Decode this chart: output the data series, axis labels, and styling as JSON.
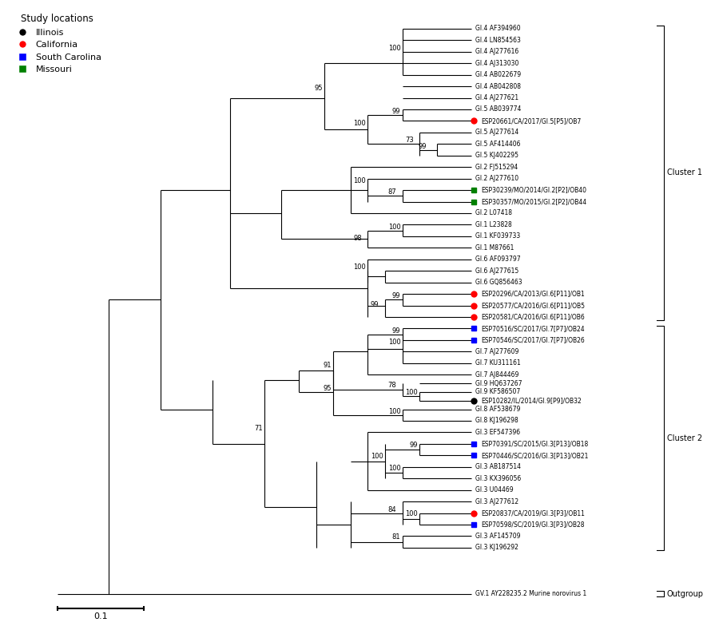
{
  "legend_title": "Study locations",
  "legend_items": [
    {
      "label": "Illinois",
      "color": "black",
      "marker": "o"
    },
    {
      "label": "California",
      "color": "red",
      "marker": "o"
    },
    {
      "label": "South Carolina",
      "color": "blue",
      "marker": "s"
    },
    {
      "label": "Missouri",
      "color": "green",
      "marker": "s"
    }
  ],
  "taxa": [
    {
      "name": "GI.4 AF394960",
      "color": null,
      "marker": null,
      "y": 68
    },
    {
      "name": "GI.4 LN854563",
      "color": null,
      "marker": null,
      "y": 66
    },
    {
      "name": "GI.4 AJ277616",
      "color": null,
      "marker": null,
      "y": 64
    },
    {
      "name": "GI.4 AJ313030",
      "color": null,
      "marker": null,
      "y": 62
    },
    {
      "name": "GI.4 AB022679",
      "color": null,
      "marker": null,
      "y": 60
    },
    {
      "name": "GI.4 AB042808",
      "color": null,
      "marker": null,
      "y": 58
    },
    {
      "name": "GI.4 AJ277621",
      "color": null,
      "marker": null,
      "y": 56
    },
    {
      "name": "GI.5 AB039774",
      "color": null,
      "marker": null,
      "y": 54
    },
    {
      "name": "ESP20661/CA/2017/GI.5[P5]/OB7",
      "color": "red",
      "marker": "o",
      "y": 52
    },
    {
      "name": "GI.5 AJ277614",
      "color": null,
      "marker": null,
      "y": 50
    },
    {
      "name": "GI.5 AF414406",
      "color": null,
      "marker": null,
      "y": 48
    },
    {
      "name": "GI.5 KJ402295",
      "color": null,
      "marker": null,
      "y": 46
    },
    {
      "name": "GI.2 FJ515294",
      "color": null,
      "marker": null,
      "y": 44
    },
    {
      "name": "GI.2 AJ277610",
      "color": null,
      "marker": null,
      "y": 42
    },
    {
      "name": "ESP30239/MO/2014/GI.2[P2]/OB40",
      "color": "green",
      "marker": "s",
      "y": 40
    },
    {
      "name": "ESP30357/MO/2015/GI.2[P2]/OB44",
      "color": "green",
      "marker": "s",
      "y": 38
    },
    {
      "name": "GI.2 L07418",
      "color": null,
      "marker": null,
      "y": 36
    },
    {
      "name": "GI.1 L23828",
      "color": null,
      "marker": null,
      "y": 34
    },
    {
      "name": "GI.1 KF039733",
      "color": null,
      "marker": null,
      "y": 32
    },
    {
      "name": "GI.1 M87661",
      "color": null,
      "marker": null,
      "y": 30
    },
    {
      "name": "GI.6 AF093797",
      "color": null,
      "marker": null,
      "y": 28
    },
    {
      "name": "GI.6 AJ277615",
      "color": null,
      "marker": null,
      "y": 26
    },
    {
      "name": "GI.6 GQ856463",
      "color": null,
      "marker": null,
      "y": 24
    },
    {
      "name": "ESP20296/CA/2013/GI.6[P11]/OB1",
      "color": "red",
      "marker": "o",
      "y": 22
    },
    {
      "name": "ESP20577/CA/2016/GI.6[P11]/OB5",
      "color": "red",
      "marker": "o",
      "y": 20
    },
    {
      "name": "ESP20581/CA/2016/GI.6[P11]/OB6",
      "color": "red",
      "marker": "o",
      "y": 18
    },
    {
      "name": "ESP70516/SC/2017/GI.7[P7]/OB24",
      "color": "blue",
      "marker": "s",
      "y": 16
    },
    {
      "name": "ESP70546/SC/2017/GI.7[P7]/OB26",
      "color": "blue",
      "marker": "s",
      "y": 14
    },
    {
      "name": "GI.7 AJ277609",
      "color": null,
      "marker": null,
      "y": 12
    },
    {
      "name": "GI.7 KU311161",
      "color": null,
      "marker": null,
      "y": 10
    },
    {
      "name": "GI.7 AJ844469",
      "color": null,
      "marker": null,
      "y": 8
    },
    {
      "name": "GI.9 HQ637267",
      "color": null,
      "marker": null,
      "y": 6.5
    },
    {
      "name": "GI.9 KF586507",
      "color": null,
      "marker": null,
      "y": 5.0
    },
    {
      "name": "ESP10282/IL/2014/GI.9[P9]/OB32",
      "color": "black",
      "marker": "o",
      "y": 3.5
    },
    {
      "name": "GI.8 AF538679",
      "color": null,
      "marker": null,
      "y": 2.0
    },
    {
      "name": "GI.8 KJ196298",
      "color": null,
      "marker": null,
      "y": 0.0
    },
    {
      "name": "GI.3 EF547396",
      "color": null,
      "marker": null,
      "y": -2.0
    },
    {
      "name": "ESP70391/SC/2015/GI.3[P13]/OB18",
      "color": "blue",
      "marker": "s",
      "y": -4.0
    },
    {
      "name": "ESP70446/SC/2016/GI.3[P13]/OB21",
      "color": "blue",
      "marker": "s",
      "y": -6.0
    },
    {
      "name": "GI.3 AB187514",
      "color": null,
      "marker": null,
      "y": -8.0
    },
    {
      "name": "GI.3 KX396056",
      "color": null,
      "marker": null,
      "y": -10.0
    },
    {
      "name": "GI.3 U04469",
      "color": null,
      "marker": null,
      "y": -12.0
    },
    {
      "name": "GI.3 AJ277612",
      "color": null,
      "marker": null,
      "y": -14.0
    },
    {
      "name": "ESP20837/CA/2019/GI.3[P3]/OB11",
      "color": "red",
      "marker": "o",
      "y": -16.0
    },
    {
      "name": "ESP70598/SC/2019/GI.3[P3]/OB28",
      "color": "blue",
      "marker": "s",
      "y": -18.0
    },
    {
      "name": "GI.3 AF145709",
      "color": null,
      "marker": null,
      "y": -20.0
    },
    {
      "name": "GI.3 KJ196292",
      "color": null,
      "marker": null,
      "y": -22.0
    },
    {
      "name": "GV.1 AY228235.2 Murine norovirus 1",
      "color": null,
      "marker": null,
      "y": -30.0
    }
  ]
}
